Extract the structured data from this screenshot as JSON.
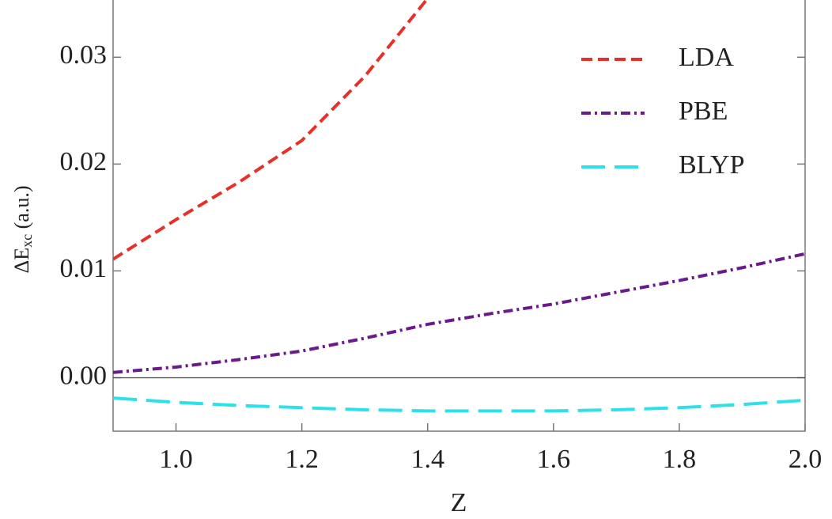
{
  "chart_data": {
    "type": "line",
    "xlabel": "Z",
    "ylabel": [
      "ΔE",
      "xc",
      " (a.u.)"
    ],
    "x": [
      0.9,
      1.0,
      1.1,
      1.2,
      1.3,
      1.4,
      1.5,
      1.6,
      1.7,
      1.8,
      1.9,
      2.0
    ],
    "series": [
      {
        "name": "LDA",
        "color": "#e8302a",
        "dash": "14,7",
        "values": [
          0.0111,
          0.0148,
          0.0183,
          0.0222,
          0.0282,
          0.0355,
          null,
          null,
          null,
          null,
          null,
          null
        ]
      },
      {
        "name": "PBE",
        "color": "#6a1a8a",
        "dash": "12,5,3,5",
        "values": [
          0.0005,
          0.001,
          0.0017,
          0.0025,
          0.0037,
          0.005,
          0.006,
          0.0069,
          0.008,
          0.0091,
          0.0103,
          0.0116
        ]
      },
      {
        "name": "BLYP",
        "color": "#2ee0e8",
        "dash": "30,12",
        "values": [
          -0.0019,
          -0.0023,
          -0.0026,
          -0.0028,
          -0.003,
          -0.0031,
          -0.0031,
          -0.0031,
          -0.003,
          -0.0028,
          -0.0025,
          -0.0021
        ]
      }
    ],
    "xlim": [
      0.9,
      2.0
    ],
    "ylim": [
      -0.005,
      0.0355
    ],
    "xticks": [
      {
        "value": 1,
        "label": "1.0"
      },
      1.2,
      1.4,
      1.6,
      1.8,
      {
        "value": 2,
        "label": "2.0"
      }
    ],
    "yticks": [
      {
        "value": 0,
        "label": "0.00"
      },
      {
        "value": 0.01,
        "label": "0.01"
      },
      {
        "value": 0.02,
        "label": "0.02"
      },
      {
        "value": 0.03,
        "label": "0.03"
      }
    ],
    "reference_line": 0,
    "legend": "top-right"
  }
}
